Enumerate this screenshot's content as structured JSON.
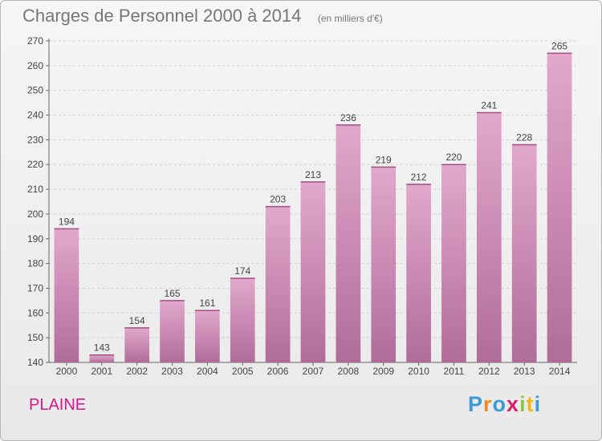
{
  "header": {
    "title": "Charges de Personnel 2000 à 2014",
    "subtitle": "(en milliers d'€)"
  },
  "footer": {
    "town": "PLAINE",
    "logo_letters": [
      "P",
      "r",
      "o",
      "x",
      "i",
      "t",
      "i"
    ],
    "logo_colors": [
      "#3d9ad8",
      "#f08c1e",
      "#3d9ad8",
      "#d81e6a",
      "#8cc63f",
      "#f0b41e",
      "#3d9ad8"
    ]
  },
  "colors": {
    "bar_top": "#e2a8cc",
    "bar_bottom": "#b06c99",
    "accent": "#e0148a"
  },
  "chart_data": {
    "type": "bar",
    "categories": [
      "2000",
      "2001",
      "2002",
      "2003",
      "2004",
      "2005",
      "2006",
      "2007",
      "2008",
      "2009",
      "2010",
      "2011",
      "2012",
      "2013",
      "2014"
    ],
    "values": [
      194,
      143,
      154,
      165,
      161,
      174,
      203,
      213,
      236,
      219,
      212,
      220,
      241,
      228,
      265
    ],
    "ylim": [
      140,
      270
    ],
    "yticks": [
      140,
      150,
      160,
      170,
      180,
      190,
      200,
      210,
      220,
      230,
      240,
      250,
      260,
      270
    ],
    "grid": true,
    "data_labels": true
  }
}
